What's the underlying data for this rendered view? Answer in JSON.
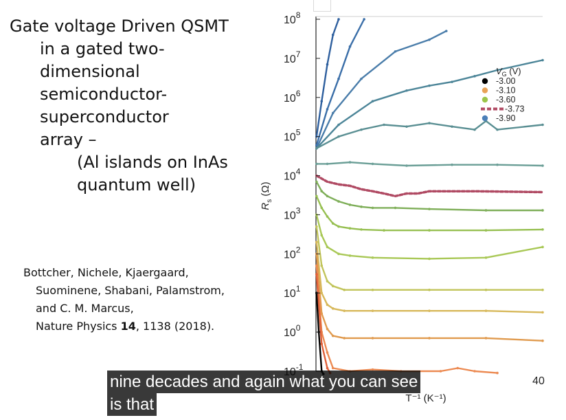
{
  "slide": {
    "title_lines": [
      "Gate voltage Driven QSMT",
      "in a gated two-",
      "dimensional",
      "semiconductor-",
      "superconductor",
      "array –",
      "(Al islands on InAs",
      "quantum well)"
    ],
    "reference": {
      "line1": "Bottcher, Nichele, Kjaergaard,",
      "line2": "Suominene, Shabani, Palamstrom,",
      "line3": "and C. M. Marcus,",
      "line4_prefix": "Nature Physics ",
      "line4_volume": "14",
      "line4_suffix": ", 1138 (2018)."
    }
  },
  "captions": {
    "line1": "nine decades and again what you can see",
    "line2": "is that"
  },
  "chart_data": {
    "type": "line",
    "ylabel": "Rs (Ω)",
    "ylabel_main": "R",
    "ylabel_sub": "s",
    "ylabel_unit": " (Ω)",
    "xlabel": "T⁻¹ (K⁻¹)",
    "yscale": "log",
    "ylim": [
      0.1,
      100000000
    ],
    "xlim": [
      0,
      40
    ],
    "yticks": [
      {
        "value": 100000000,
        "base": "10",
        "exp": "8"
      },
      {
        "value": 10000000,
        "base": "10",
        "exp": "7"
      },
      {
        "value": 1000000,
        "base": "10",
        "exp": "6"
      },
      {
        "value": 100000,
        "base": "10",
        "exp": "5"
      },
      {
        "value": 10000,
        "base": "10",
        "exp": "4"
      },
      {
        "value": 1000,
        "base": "10",
        "exp": "3"
      },
      {
        "value": 100,
        "base": "10",
        "exp": "2"
      },
      {
        "value": 10,
        "base": "10",
        "exp": "1"
      },
      {
        "value": 1,
        "base": "10",
        "exp": "0"
      },
      {
        "value": 0.1,
        "base": "10",
        "exp": "-1"
      }
    ],
    "xticks": [
      {
        "value": 40,
        "label": "40"
      }
    ],
    "legend": {
      "title": "V",
      "title_sub": "G",
      "title_unit": " (V)",
      "position": "top-right",
      "entries": [
        {
          "label": "-3.00",
          "color": "#000000",
          "style": "dot"
        },
        {
          "label": "-3.10",
          "color": "#e8a257",
          "style": "dot"
        },
        {
          "label": "-3.60",
          "color": "#9bc54a",
          "style": "dot"
        },
        {
          "label": "-3.73",
          "color": "#b04a63",
          "style": "dash"
        },
        {
          "label": "-3.90",
          "color": "#4b7fb8",
          "style": "dot"
        }
      ]
    },
    "series": [
      {
        "color": "#2e5f9e",
        "points": [
          [
            0.1,
            100000
          ],
          [
            1.0,
            800000
          ],
          [
            2.0,
            7000000
          ],
          [
            3.0,
            40000000
          ],
          [
            4.0,
            100000000
          ]
        ]
      },
      {
        "color": "#3a6ea8",
        "points": [
          [
            0.1,
            60000
          ],
          [
            2.0,
            500000
          ],
          [
            4.0,
            3000000
          ],
          [
            6.0,
            20000000
          ],
          [
            8.5,
            100000000
          ]
        ]
      },
      {
        "color": "#4a7daa",
        "points": [
          [
            0.1,
            50000
          ],
          [
            3.0,
            400000
          ],
          [
            8.0,
            3000000
          ],
          [
            14.0,
            15000000
          ],
          [
            20.0,
            30000000
          ],
          [
            23.0,
            50000000
          ]
        ]
      },
      {
        "color": "#4c8598",
        "points": [
          [
            0.1,
            50000
          ],
          [
            4.0,
            200000
          ],
          [
            10.0,
            800000
          ],
          [
            16.0,
            1500000
          ],
          [
            20.0,
            2000000
          ],
          [
            24.0,
            2500000
          ],
          [
            28.0,
            3500000
          ],
          [
            32.0,
            5000000
          ],
          [
            40.0,
            9000000
          ]
        ]
      },
      {
        "color": "#5a8f93",
        "points": [
          [
            0.1,
            50000
          ],
          [
            4.0,
            100000
          ],
          [
            8.0,
            150000
          ],
          [
            12.0,
            200000
          ],
          [
            16.0,
            180000
          ],
          [
            20.0,
            220000
          ],
          [
            24.0,
            180000
          ],
          [
            28.0,
            150000
          ],
          [
            30.0,
            250000
          ],
          [
            32.0,
            150000
          ],
          [
            40.0,
            200000
          ]
        ]
      },
      {
        "color": "#6a9e96",
        "points": [
          [
            0.1,
            20000
          ],
          [
            2.0,
            20000
          ],
          [
            6.0,
            22000
          ],
          [
            10.0,
            20000
          ],
          [
            16.0,
            18000
          ],
          [
            24.0,
            19000
          ],
          [
            32.0,
            19000
          ],
          [
            40.0,
            18000
          ]
        ]
      },
      {
        "color": "#b04a63",
        "dash": true,
        "points": [
          [
            0.1,
            10000
          ],
          [
            2.0,
            7000
          ],
          [
            4.0,
            6000
          ],
          [
            6.0,
            5500
          ],
          [
            8.0,
            4500
          ],
          [
            10.0,
            4000
          ],
          [
            12.0,
            3500
          ],
          [
            14.0,
            3000
          ],
          [
            16.0,
            3500
          ],
          [
            18.0,
            3500
          ],
          [
            20.0,
            4000
          ],
          [
            28.0,
            4000
          ],
          [
            40.0,
            3800
          ]
        ]
      },
      {
        "color": "#7eae58",
        "points": [
          [
            0.1,
            7000
          ],
          [
            1.0,
            4000
          ],
          [
            2.0,
            3000
          ],
          [
            4.0,
            2200
          ],
          [
            6.0,
            1800
          ],
          [
            8.0,
            1600
          ],
          [
            10.0,
            1500
          ],
          [
            14.0,
            1500
          ],
          [
            20.0,
            1400
          ],
          [
            30.0,
            1300
          ],
          [
            40.0,
            1300
          ]
        ]
      },
      {
        "color": "#96bf50",
        "points": [
          [
            0.1,
            3000
          ],
          [
            1.0,
            1500
          ],
          [
            2.0,
            900
          ],
          [
            3.0,
            600
          ],
          [
            4.0,
            500
          ],
          [
            6.0,
            450
          ],
          [
            8.0,
            420
          ],
          [
            12.0,
            400
          ],
          [
            20.0,
            400
          ],
          [
            30.0,
            400
          ],
          [
            40.0,
            420
          ]
        ]
      },
      {
        "color": "#a9c856",
        "points": [
          [
            0.1,
            1000
          ],
          [
            1.0,
            300
          ],
          [
            2.0,
            150
          ],
          [
            4.0,
            100
          ],
          [
            6.0,
            90
          ],
          [
            10.0,
            80
          ],
          [
            20.0,
            75
          ],
          [
            30.0,
            80
          ],
          [
            40.0,
            150
          ]
        ]
      },
      {
        "color": "#c1c45a",
        "points": [
          [
            0.1,
            500
          ],
          [
            1.0,
            50
          ],
          [
            2.0,
            20
          ],
          [
            3.0,
            15
          ],
          [
            5.0,
            12
          ],
          [
            10.0,
            12
          ],
          [
            20.0,
            12
          ],
          [
            30.0,
            12
          ],
          [
            40.0,
            12
          ]
        ]
      },
      {
        "color": "#d7b85a",
        "points": [
          [
            0.1,
            200
          ],
          [
            1.0,
            10
          ],
          [
            2.0,
            5
          ],
          [
            3.0,
            4
          ],
          [
            5.0,
            3.5
          ],
          [
            10.0,
            3.5
          ],
          [
            20.0,
            3.5
          ],
          [
            30.0,
            3.5
          ],
          [
            40.0,
            3.2
          ]
        ]
      },
      {
        "color": "#e09a4e",
        "points": [
          [
            0.1,
            100
          ],
          [
            1.0,
            3
          ],
          [
            2.0,
            1.2
          ],
          [
            3.0,
            0.8
          ],
          [
            5.0,
            0.7
          ],
          [
            10.0,
            0.7
          ],
          [
            20.0,
            0.7
          ],
          [
            30.0,
            0.7
          ],
          [
            40.0,
            0.6
          ]
        ]
      },
      {
        "color": "#ec8a52",
        "points": [
          [
            0.1,
            50
          ],
          [
            1.0,
            1
          ],
          [
            2.0,
            0.3
          ],
          [
            3.0,
            0.12
          ],
          [
            6.0,
            0.1
          ],
          [
            10.0,
            0.11
          ],
          [
            15.0,
            0.1
          ],
          [
            22.0,
            0.1
          ],
          [
            25.0,
            0.12
          ],
          [
            28.0,
            0.1
          ],
          [
            32.0,
            0.09
          ]
        ]
      },
      {
        "color": "#e0603a",
        "points": [
          [
            0.1,
            30
          ],
          [
            1.0,
            0.5
          ],
          [
            2.0,
            0.12
          ],
          [
            2.5,
            0.09
          ]
        ]
      },
      {
        "color": "#000000",
        "points": [
          [
            0.1,
            10
          ],
          [
            0.5,
            1
          ],
          [
            1.0,
            0.1
          ],
          [
            1.3,
            0.08
          ]
        ]
      }
    ]
  }
}
